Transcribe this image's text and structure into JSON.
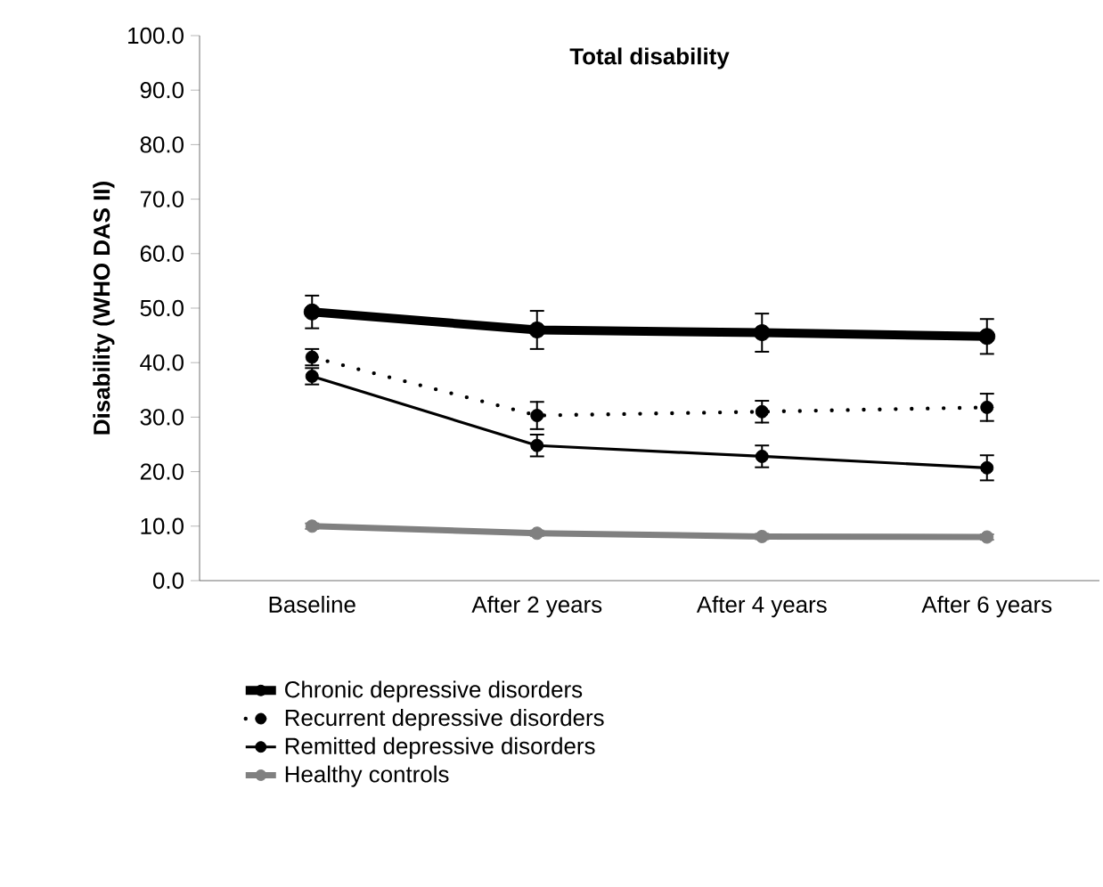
{
  "chart_data": {
    "type": "line",
    "title": "Total disability",
    "ylabel": "Disability (WHO DAS II)",
    "categories": [
      "Baseline",
      "After 2 years",
      "After 4 years",
      "After 6 years"
    ],
    "series": [
      {
        "name": "Chronic depressive disorders",
        "color": "#000000",
        "values": [
          49.3,
          46.0,
          45.5,
          44.8
        ],
        "errors": [
          3.0,
          3.5,
          3.5,
          3.2
        ]
      },
      {
        "name": "Recurrent depressive disorders",
        "color": "#000000",
        "line_style": "dotted",
        "values": [
          41.0,
          30.3,
          31.0,
          31.8
        ],
        "errors": [
          1.5,
          2.5,
          2.0,
          2.5
        ]
      },
      {
        "name": "Remitted depressive disorders",
        "color": "#000000",
        "values": [
          37.5,
          24.8,
          22.8,
          20.7
        ],
        "errors": [
          1.5,
          2.0,
          2.0,
          2.3
        ]
      },
      {
        "name": "Healthy controls",
        "color": "#808080",
        "values": [
          10.0,
          8.7,
          8.1,
          8.0
        ],
        "errors": [
          0.5,
          0.5,
          0.5,
          0.5
        ]
      }
    ],
    "ylim": [
      0,
      100
    ],
    "yticks": [
      {
        "value": 0,
        "label": "0.0"
      },
      {
        "value": 10,
        "label": "10.0"
      },
      {
        "value": 20,
        "label": "20.0"
      },
      {
        "value": 30,
        "label": "30.0"
      },
      {
        "value": 40,
        "label": "40.0"
      },
      {
        "value": 50,
        "label": "50.0"
      },
      {
        "value": 60,
        "label": "60.0"
      },
      {
        "value": 70,
        "label": "70.0"
      },
      {
        "value": 80,
        "label": "80.0"
      },
      {
        "value": 90,
        "label": "90.0"
      },
      {
        "value": 100,
        "label": "100.0"
      }
    ],
    "marker": "circle",
    "line_style": "solid",
    "legend": "bottom",
    "grid": false
  }
}
